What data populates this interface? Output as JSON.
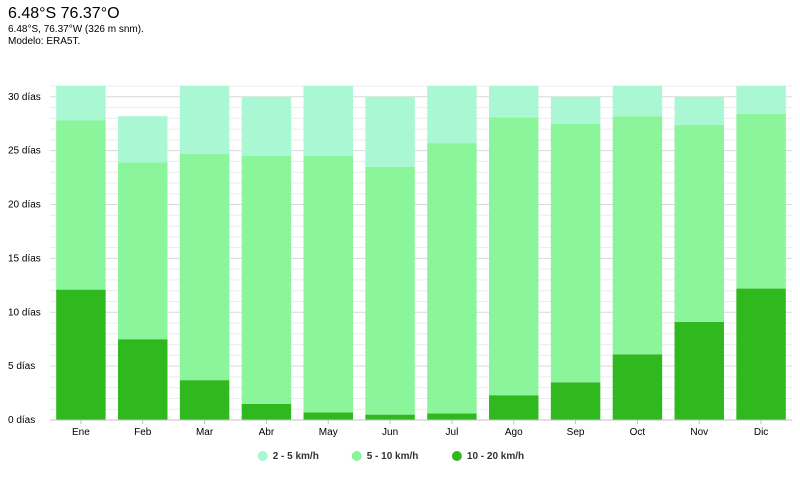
{
  "header": {
    "title": "6.48°S 76.37°O",
    "subtitle": "6.48°S, 76.37°W (326 m snm).",
    "model": "Modelo: ERA5T."
  },
  "chart_data": {
    "type": "bar",
    "stacked": true,
    "categories": [
      "Ene",
      "Feb",
      "Mar",
      "Abr",
      "May",
      "Jun",
      "Jul",
      "Ago",
      "Sep",
      "Oct",
      "Nov",
      "Dic"
    ],
    "ylim": [
      0,
      31
    ],
    "yticks": [
      0,
      5,
      10,
      15,
      20,
      25,
      30
    ],
    "ytick_labels": [
      "0 días",
      "5 días",
      "10 días",
      "15 días",
      "20 días",
      "25 días",
      "30 días"
    ],
    "grid": true,
    "legend_position": "bottom",
    "series": [
      {
        "name": "10 - 20 km/h",
        "color": "#2fb91f",
        "values": [
          12.1,
          7.5,
          3.7,
          1.5,
          0.7,
          0.5,
          0.6,
          2.3,
          3.5,
          6.1,
          9.1,
          12.2
        ]
      },
      {
        "name": "5 - 10 km/h",
        "color": "#8af59b",
        "values": [
          15.7,
          16.4,
          21.0,
          23.0,
          23.8,
          23.0,
          25.1,
          25.8,
          24.0,
          22.1,
          18.3,
          16.2
        ]
      },
      {
        "name": "2 - 5 km/h",
        "color": "#aaf7d3",
        "values": [
          3.2,
          4.3,
          6.3,
          5.5,
          6.5,
          6.5,
          5.3,
          2.9,
          2.5,
          2.8,
          2.6,
          2.6
        ]
      }
    ],
    "legend_order": [
      "2 - 5 km/h",
      "5 - 10 km/h",
      "10 - 20 km/h"
    ]
  }
}
